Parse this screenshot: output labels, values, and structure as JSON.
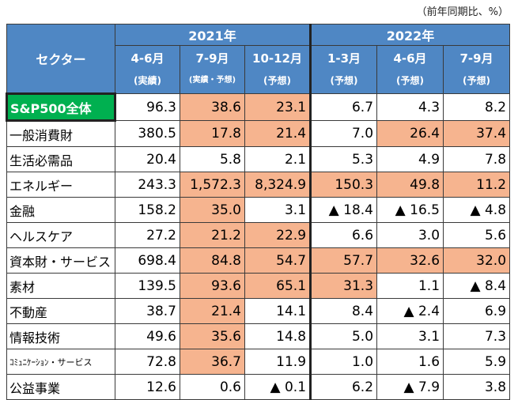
{
  "note": "（前年同期比、%）",
  "header": {
    "sector_label": "セクター",
    "year_2021": "2021年",
    "year_2022": "2022年",
    "columns": [
      {
        "period": "4-6月",
        "sub": "(実績)"
      },
      {
        "period": "7-9月",
        "sub": "(実績・予想)"
      },
      {
        "period": "10-12月",
        "sub": "(予想)"
      },
      {
        "period": "1-3月",
        "sub": "(予想)"
      },
      {
        "period": "4-6月",
        "sub": "(予想)"
      },
      {
        "period": "7-9月",
        "sub": "(予想)"
      }
    ]
  },
  "highlight_color": "#f6b48f",
  "total_color": "#00b050",
  "rows": [
    {
      "name": "S&P500全体",
      "v": [
        "96.3",
        "38.6",
        "23.1",
        "6.7",
        "4.3",
        "8.2"
      ],
      "hl": [
        false,
        true,
        true,
        false,
        false,
        false
      ]
    },
    {
      "name": "一般消費財",
      "v": [
        "380.5",
        "17.8",
        "21.4",
        "7.0",
        "26.4",
        "37.4"
      ],
      "hl": [
        false,
        true,
        true,
        false,
        true,
        true
      ]
    },
    {
      "name": "生活必需品",
      "v": [
        "20.4",
        "5.8",
        "2.1",
        "5.3",
        "4.9",
        "7.8"
      ],
      "hl": [
        false,
        false,
        false,
        false,
        false,
        false
      ]
    },
    {
      "name": "エネルギー",
      "v": [
        "243.3",
        "1,572.3",
        "8,324.9",
        "150.3",
        "49.8",
        "11.2"
      ],
      "hl": [
        false,
        true,
        true,
        true,
        true,
        true
      ]
    },
    {
      "name": "金融",
      "v": [
        "158.2",
        "35.0",
        "3.1",
        "▲ 18.4",
        "▲ 16.5",
        "▲ 4.8"
      ],
      "hl": [
        false,
        true,
        false,
        false,
        false,
        false
      ]
    },
    {
      "name": "ヘルスケア",
      "v": [
        "27.2",
        "21.2",
        "22.9",
        "6.6",
        "3.0",
        "5.6"
      ],
      "hl": [
        false,
        true,
        true,
        false,
        false,
        false
      ]
    },
    {
      "name": "資本財・サービス",
      "v": [
        "698.4",
        "84.8",
        "54.7",
        "57.7",
        "32.6",
        "32.0"
      ],
      "hl": [
        false,
        true,
        true,
        true,
        true,
        true
      ]
    },
    {
      "name": "素材",
      "v": [
        "139.5",
        "93.6",
        "65.1",
        "31.3",
        "1.1",
        "▲ 8.4"
      ],
      "hl": [
        false,
        true,
        true,
        true,
        false,
        false
      ]
    },
    {
      "name": "不動産",
      "v": [
        "38.7",
        "21.4",
        "14.1",
        "8.4",
        "▲ 2.4",
        "6.9"
      ],
      "hl": [
        false,
        true,
        false,
        false,
        false,
        false
      ]
    },
    {
      "name": "情報技術",
      "v": [
        "49.6",
        "35.6",
        "14.8",
        "5.0",
        "3.1",
        "7.3"
      ],
      "hl": [
        false,
        true,
        false,
        false,
        false,
        false
      ]
    },
    {
      "name": "ｺﾐｭﾆｹｰｼｮﾝ・サービス",
      "v": [
        "72.8",
        "36.7",
        "11.9",
        "1.0",
        "1.6",
        "5.9"
      ],
      "hl": [
        false,
        true,
        false,
        false,
        false,
        false
      ]
    },
    {
      "name": "公益事業",
      "v": [
        "12.6",
        "0.6",
        "▲ 0.1",
        "6.2",
        "▲ 7.9",
        "3.8"
      ],
      "hl": [
        false,
        false,
        false,
        false,
        false,
        false
      ]
    }
  ]
}
